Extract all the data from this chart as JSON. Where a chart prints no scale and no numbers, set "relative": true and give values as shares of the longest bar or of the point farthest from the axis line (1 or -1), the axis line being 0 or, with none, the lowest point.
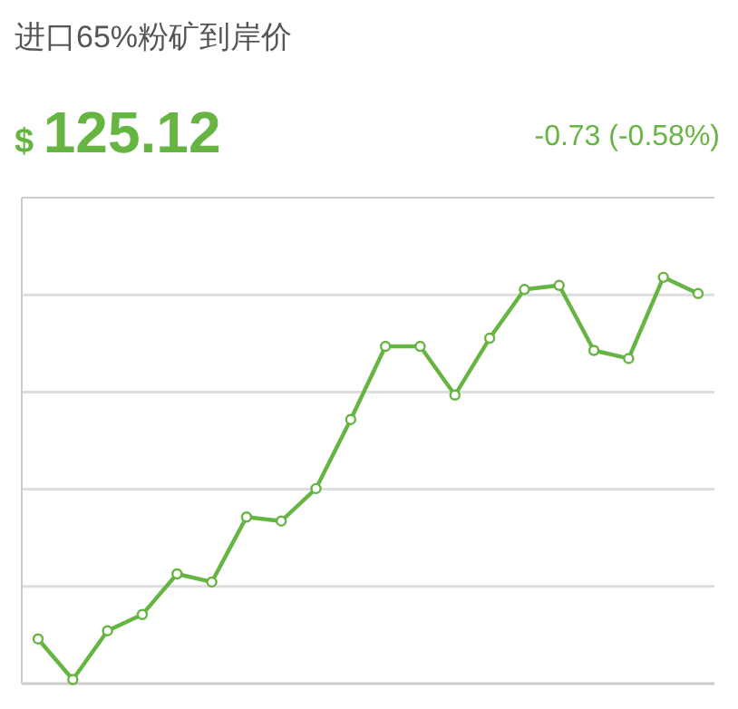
{
  "chart_data": {
    "type": "line",
    "title": "进口65%粉矿到岸价",
    "annotations": [
      "$ 125.12",
      "-0.73 (-0.58%)"
    ],
    "categories": [
      null,
      null,
      null,
      null,
      null,
      null,
      null,
      null,
      null,
      null,
      null,
      null,
      null,
      null,
      null,
      null,
      null,
      null,
      null,
      null
    ],
    "relative": true,
    "series": [
      {
        "color": "#66b543",
        "values": [
          0.11,
          0.01,
          0.13,
          0.17,
          0.27,
          0.25,
          0.41,
          0.4,
          0.48,
          0.65,
          0.83,
          0.83,
          0.71,
          0.85,
          0.97,
          0.98,
          0.82,
          0.8,
          1,
          0.96
        ]
      }
    ],
    "marker": "circle",
    "line_style": "solid",
    "grid": "y"
  }
}
